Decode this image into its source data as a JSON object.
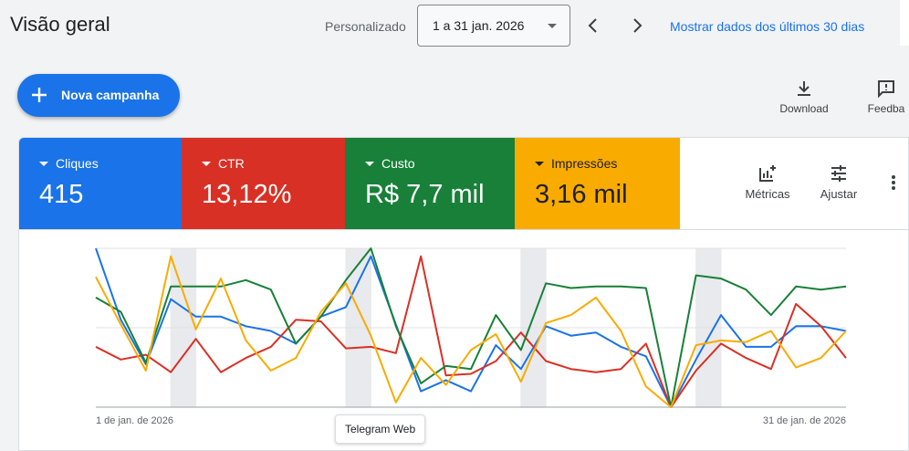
{
  "header": {
    "title": "Visão geral",
    "date_label": "Personalizado",
    "date_range": "1 a 31 jan. 2026",
    "show_last_30": "Mostrar dados dos últimos 30 dias"
  },
  "actions": {
    "new_campaign": "Nova campanha",
    "download": "Download",
    "feedback": "Feedba"
  },
  "metrics": [
    {
      "label": "Cliques",
      "value": "415",
      "color": "#1a73e8"
    },
    {
      "label": "CTR",
      "value": "13,12%",
      "color": "#d93025"
    },
    {
      "label": "Custo",
      "value": "R$ 7,7 mil",
      "color": "#188038"
    },
    {
      "label": "Impressões",
      "value": "3,16 mil",
      "color": "#f9ab00"
    }
  ],
  "tile_actions": {
    "metrics": "Métricas",
    "adjust": "Ajustar"
  },
  "tooltip": "Telegram Web",
  "chart_data": {
    "type": "line",
    "x_start_label": "1 de jan. de 2026",
    "x_end_label": "31 de jan. de 2026",
    "weekend_bands": [
      [
        3,
        4
      ],
      [
        10,
        11
      ],
      [
        17,
        18
      ],
      [
        24,
        25
      ]
    ],
    "series": [
      {
        "name": "Cliques",
        "color": "#1a73e8",
        "values": [
          100,
          55,
          27,
          68,
          57,
          57,
          51,
          48,
          40,
          57,
          63,
          95,
          52,
          10,
          17,
          10,
          39,
          24,
          51,
          45,
          47,
          38,
          32,
          0,
          30,
          58,
          38,
          38,
          51,
          51,
          48
        ]
      },
      {
        "name": "CTR",
        "color": "#d93025",
        "values": [
          38,
          30,
          33,
          22,
          43,
          22,
          31,
          38,
          55,
          54,
          37,
          38,
          34,
          95,
          20,
          21,
          29,
          47,
          29,
          24,
          22,
          24,
          40,
          0,
          23,
          40,
          31,
          24,
          65,
          51,
          31
        ]
      },
      {
        "name": "Custo",
        "color": "#188038",
        "values": [
          69,
          60,
          28,
          76,
          76,
          76,
          80,
          74,
          40,
          57,
          80,
          100,
          51,
          15,
          26,
          24,
          58,
          36,
          78,
          75,
          76,
          76,
          75,
          0,
          83,
          81,
          74,
          58,
          76,
          74,
          76
        ]
      },
      {
        "name": "Impressões",
        "color": "#f9ab00",
        "values": [
          82,
          52,
          23,
          95,
          49,
          81,
          42,
          23,
          31,
          60,
          78,
          45,
          3,
          31,
          14,
          36,
          46,
          16,
          53,
          58,
          69,
          48,
          13,
          0,
          39,
          42,
          41,
          48,
          25,
          31,
          48
        ]
      }
    ]
  }
}
